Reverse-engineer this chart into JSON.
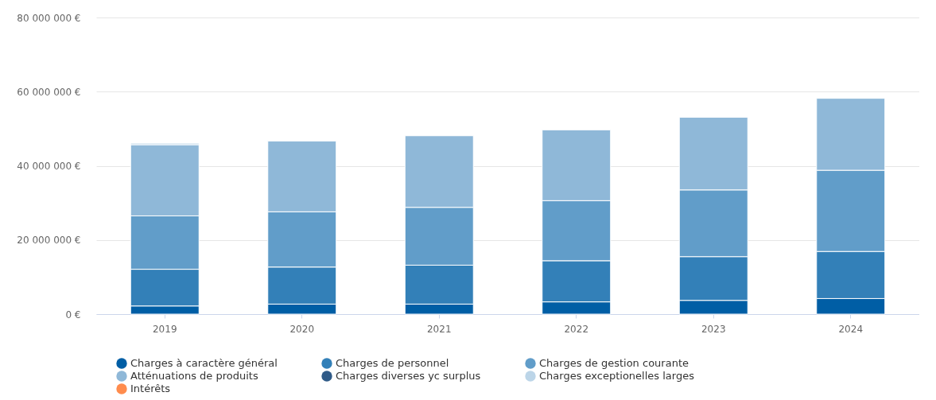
{
  "chart_data": {
    "type": "bar",
    "stacked": true,
    "categories": [
      "2019",
      "2020",
      "2021",
      "2022",
      "2023",
      "2024"
    ],
    "series": [
      {
        "name": "Charges à caractère général",
        "color": "#005ea5",
        "values": [
          2200000,
          2700000,
          2700000,
          3300000,
          3700000,
          4200000
        ]
      },
      {
        "name": "Charges de personnel",
        "color": "#3380b8",
        "values": [
          9900000,
          10000000,
          10500000,
          11100000,
          11800000,
          12700000
        ]
      },
      {
        "name": "Charges de gestion courante",
        "color": "#619dc9",
        "values": [
          14400000,
          14900000,
          15600000,
          16200000,
          18000000,
          21900000
        ]
      },
      {
        "name": "Atténuations de produits",
        "color": "#8fb8d8",
        "values": [
          19200000,
          19100000,
          19300000,
          19100000,
          19600000,
          19400000
        ]
      },
      {
        "name": "Charges diverses yc surplus",
        "color": "#2f5a87",
        "values": [
          null,
          null,
          null,
          null,
          null,
          null
        ]
      },
      {
        "name": "Charges exceptionelles larges",
        "color": "#bcd5e8",
        "values": [
          400000,
          null,
          null,
          null,
          null,
          null
        ]
      },
      {
        "name": "Intérêts",
        "color": "#ff8c4d",
        "values": [
          null,
          null,
          null,
          null,
          null,
          null
        ]
      }
    ],
    "ylim": [
      0,
      80000000
    ],
    "yticks": [
      {
        "value": 0,
        "label": "0 €"
      },
      {
        "value": 20000000,
        "label": "20 000 000 €"
      },
      {
        "value": 40000000,
        "label": "40 000 000 €"
      },
      {
        "value": 60000000,
        "label": "60 000 000 €"
      },
      {
        "value": 80000000,
        "label": "80 000 000 €"
      }
    ],
    "grid": "y",
    "legend": "bottom"
  }
}
